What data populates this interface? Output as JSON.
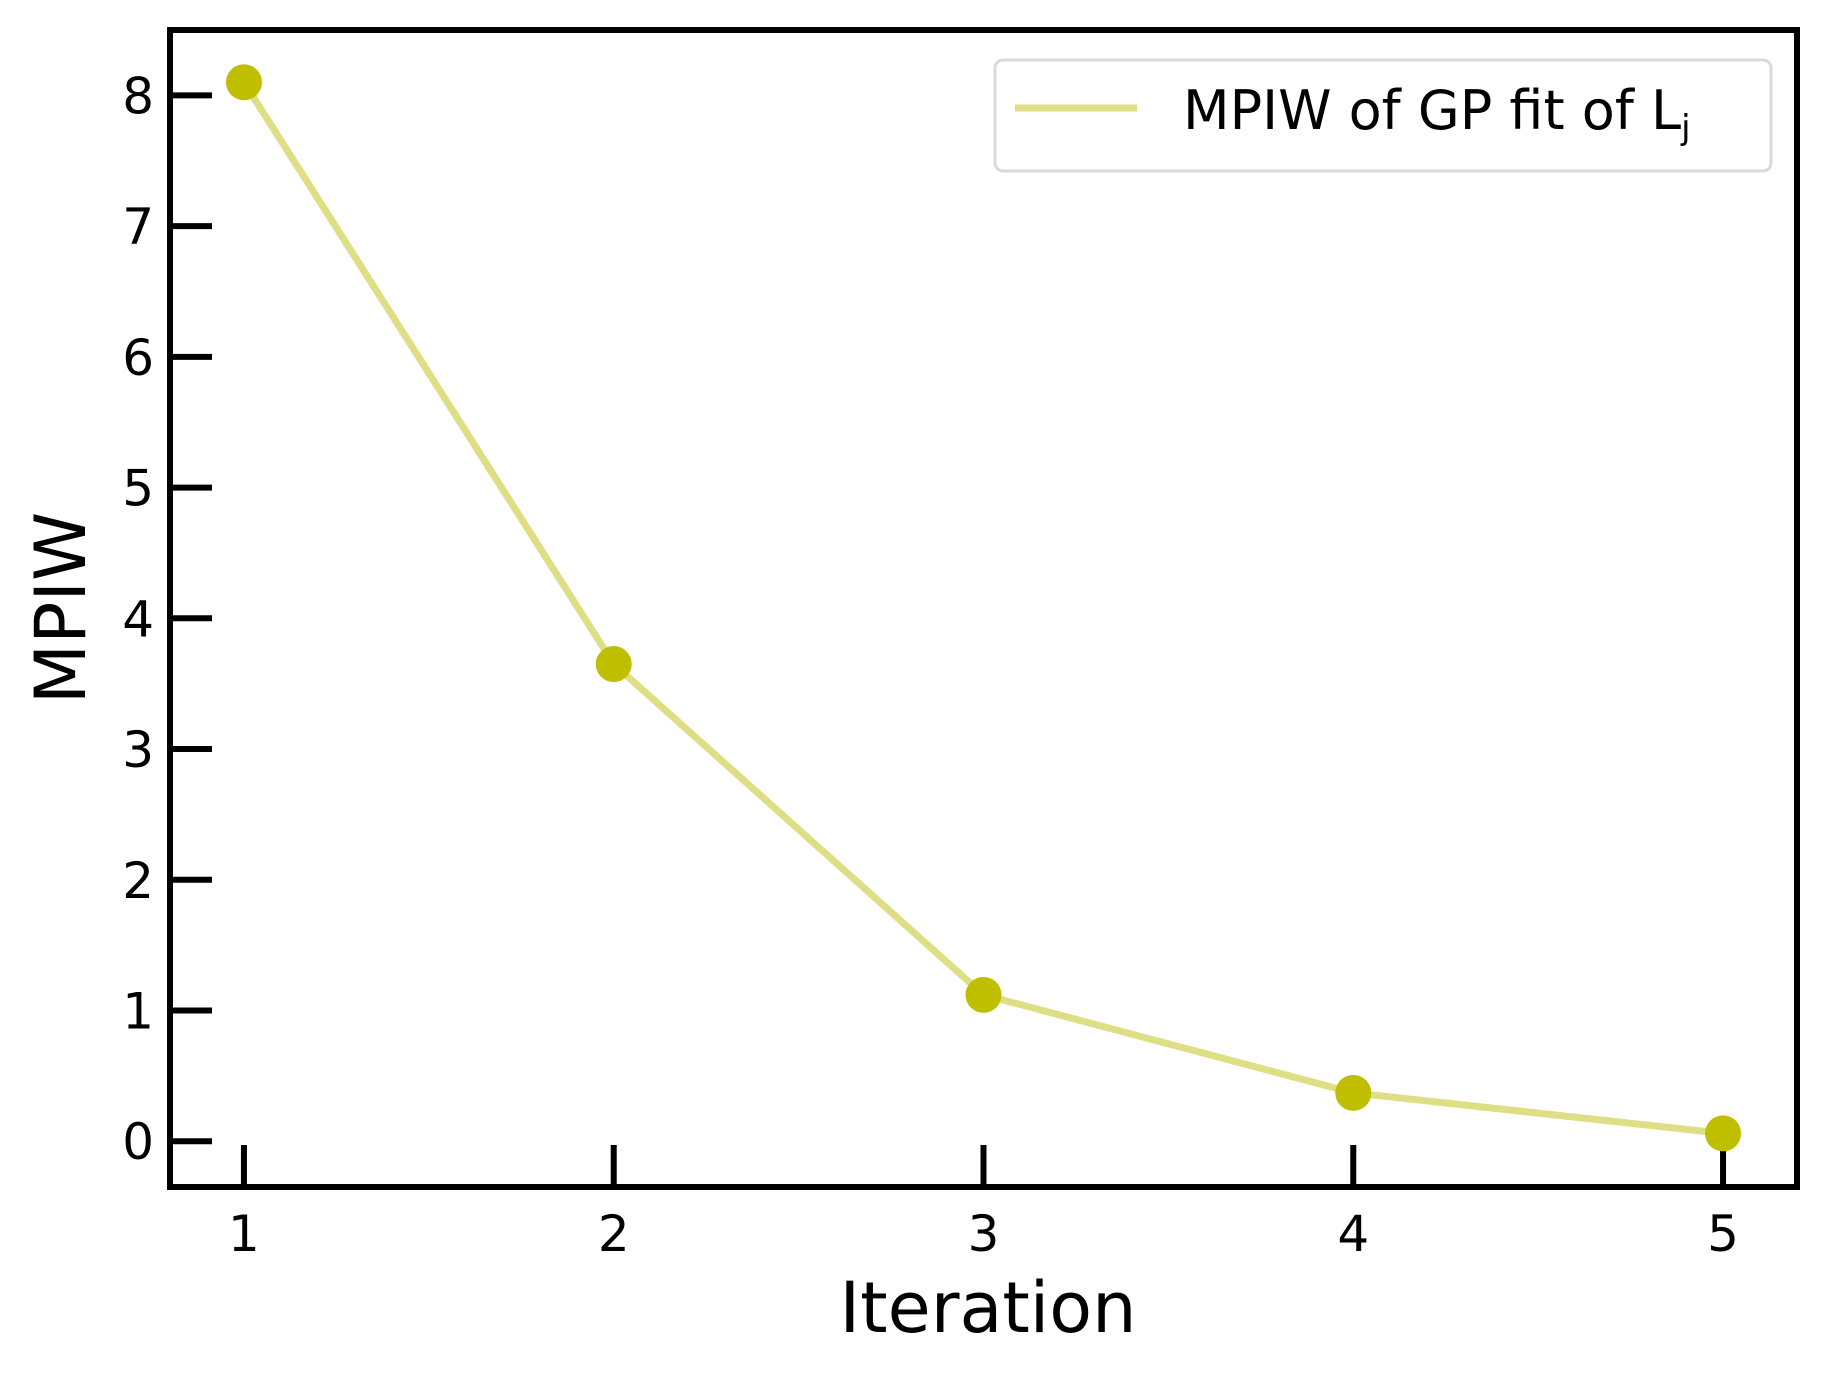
{
  "chart_data": {
    "type": "line",
    "xlabel": "Iteration",
    "ylabel": "MPIW",
    "xlim": [
      0.8,
      5.2
    ],
    "ylim": [
      -0.35,
      8.5
    ],
    "x_ticks": [
      1,
      2,
      3,
      4,
      5
    ],
    "y_ticks": [
      0,
      1,
      2,
      3,
      4,
      5,
      6,
      7,
      8
    ],
    "grid": false,
    "legend_position": "top-right",
    "series": [
      {
        "name": "MPIW of GP fit of L",
        "name_subscript": "j",
        "x": [
          1,
          2,
          3,
          4,
          5
        ],
        "y": [
          8.1,
          3.65,
          1.12,
          0.37,
          0.06
        ],
        "line_color": "#dede85",
        "marker_color": "#bfbf00"
      }
    ]
  }
}
